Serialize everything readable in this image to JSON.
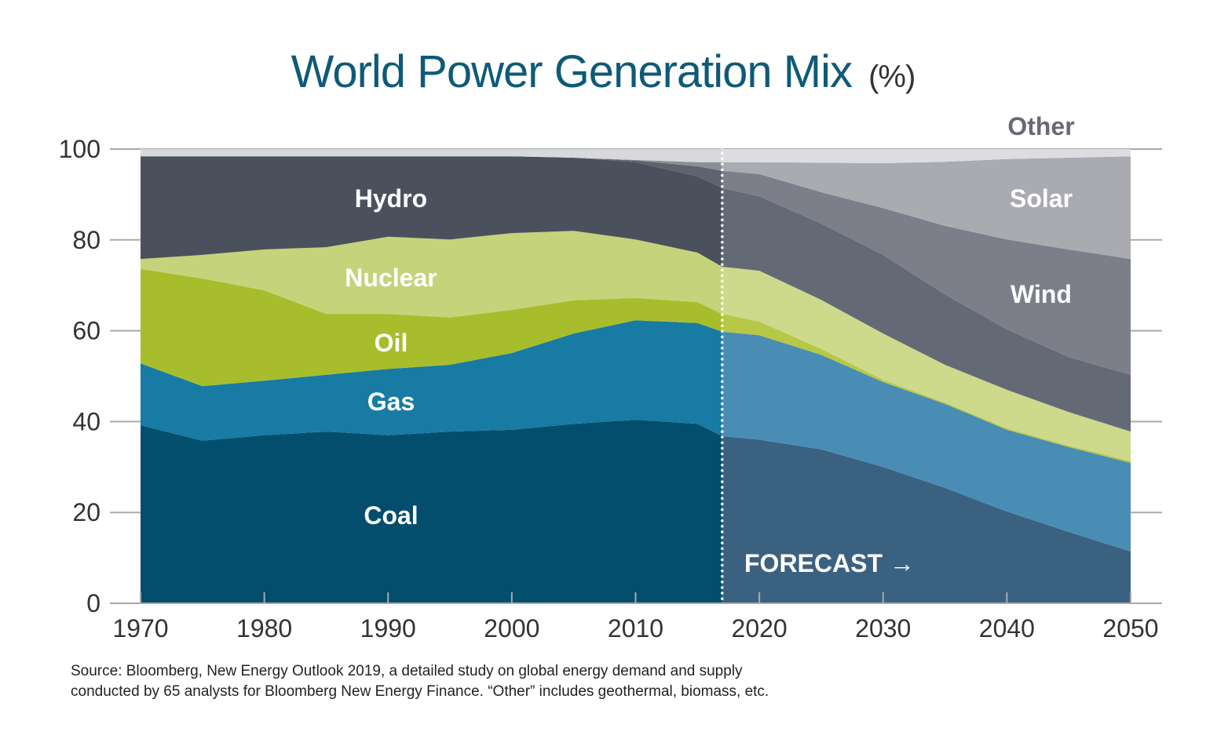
{
  "chart_data": {
    "type": "area",
    "stacked": true,
    "title": "World Power Generation Mix",
    "title_unit": "(%)",
    "xlabel": "",
    "ylabel": "",
    "ylim": [
      0,
      100
    ],
    "xlim": [
      1970,
      2050
    ],
    "yticks": [
      0,
      20,
      40,
      60,
      80,
      100
    ],
    "xticks": [
      1970,
      1980,
      1990,
      2000,
      2010,
      2020,
      2030,
      2040,
      2050
    ],
    "grid": true,
    "forecast_start": 2017,
    "forecast_label": "FORECAST →",
    "x": [
      1970,
      1975,
      1980,
      1985,
      1990,
      1995,
      2000,
      2005,
      2010,
      2015,
      2017,
      2020,
      2025,
      2030,
      2035,
      2040,
      2045,
      2050
    ],
    "series": [
      {
        "name": "Coal",
        "color": "#034e6c",
        "forecast_color": "#3b6180",
        "label_color": "#ffffff",
        "values": [
          39.2,
          35.8,
          37,
          37.8,
          37,
          37.8,
          38.2,
          39.5,
          40.4,
          39.5,
          36.8,
          36,
          33.9,
          30,
          25.4,
          20.2,
          15.7,
          11.4
        ]
      },
      {
        "name": "Gas",
        "color": "#177ba4",
        "forecast_color": "#4a8db4",
        "label_color": "#ffffff",
        "values": [
          13.6,
          12,
          12,
          12.5,
          14.6,
          14.7,
          16.9,
          19.9,
          21.9,
          22.2,
          23,
          23,
          20.8,
          18.7,
          18.5,
          18,
          18.7,
          19.5
        ]
      },
      {
        "name": "Oil",
        "color": "#a8bd2b",
        "forecast_color": "#b6c845",
        "label_color": "#ffffff",
        "values": [
          20.8,
          23.7,
          19.9,
          13.4,
          12.1,
          10.4,
          9.5,
          7.3,
          4.9,
          4.6,
          3.9,
          3,
          1.3,
          0.5,
          0.3,
          0.3,
          0.3,
          0.4
        ]
      },
      {
        "name": "Nuclear",
        "color": "#c5d37a",
        "forecast_color": "#cdd98b",
        "label_color": "#ffffff",
        "values": [
          2.2,
          5.2,
          9,
          14.7,
          17,
          17.2,
          16.9,
          15.3,
          12.9,
          10.9,
          10.4,
          11.2,
          10.8,
          10.2,
          8.3,
          8.5,
          7.4,
          6.5
        ]
      },
      {
        "name": "Hydro",
        "color": "#4b515c",
        "forecast_color": "#646a75",
        "label_color": "#ffffff",
        "values": [
          22.6,
          21.7,
          20.5,
          20,
          17.7,
          18.3,
          16.9,
          16.1,
          17,
          16.8,
          17.3,
          16.4,
          16.8,
          17.3,
          15.5,
          13.3,
          12.1,
          12.5
        ]
      },
      {
        "name": "Wind",
        "color": "#5e636e",
        "forecast_color": "#7c7f89",
        "label_color": "#ffffff",
        "values": [
          0,
          0,
          0,
          0,
          0,
          0,
          0,
          0,
          0.4,
          2.2,
          3.8,
          4.9,
          6.9,
          10.3,
          15.1,
          19.8,
          23.7,
          25.5
        ]
      },
      {
        "name": "Solar",
        "color": "#8a8e96",
        "forecast_color": "#a9abb1",
        "label_color": "#ffffff",
        "values": [
          0,
          0,
          0,
          0,
          0,
          0,
          0,
          0,
          0.1,
          0.9,
          1.9,
          2.6,
          6.5,
          9.9,
          14.1,
          17.7,
          20.2,
          22.6
        ]
      },
      {
        "name": "Other",
        "color": "#d8d9dc",
        "forecast_color": "#dcdde0",
        "label_color": "#666a72",
        "values": [
          1.6,
          1.6,
          1.6,
          1.6,
          1.6,
          1.6,
          1.6,
          1.9,
          2.4,
          2.9,
          2.9,
          2.9,
          3,
          3.1,
          2.8,
          2.2,
          1.9,
          1.6
        ]
      }
    ],
    "source_lines": [
      "Source: Bloomberg, New Energy Outlook 2019, a detailed study on global energy demand and supply",
      "conducted by 65 analysts for Bloomberg New Energy Finance. “Other” includes geothermal, biomass, etc."
    ]
  }
}
